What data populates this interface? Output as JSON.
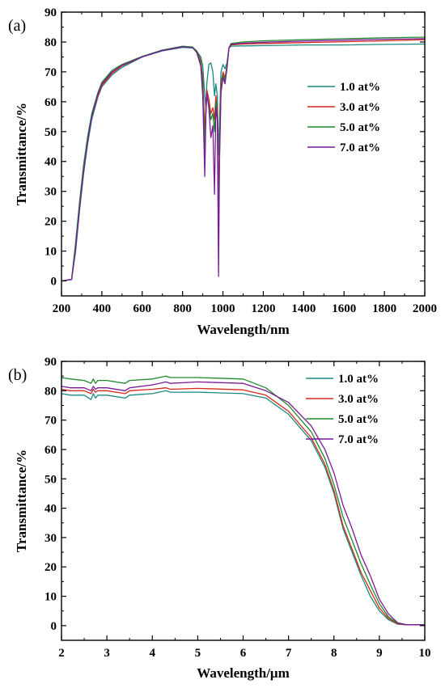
{
  "chart_data": [
    {
      "type": "line",
      "panel_label": "(a)",
      "xlabel": "Wavelength/nm",
      "ylabel": "Transmittance/%",
      "xlim": [
        200,
        2000
      ],
      "ylim": [
        -5,
        90
      ],
      "xticks": [
        200,
        400,
        600,
        800,
        1000,
        1200,
        1400,
        1600,
        1800,
        2000
      ],
      "yticks": [
        0,
        10,
        20,
        30,
        40,
        50,
        60,
        70,
        80,
        90
      ],
      "legend_position": "right-middle",
      "series": [
        {
          "name": "1.0 at%",
          "color": "#1a8a80",
          "x": [
            200,
            250,
            270,
            290,
            310,
            330,
            350,
            380,
            400,
            450,
            500,
            600,
            700,
            800,
            850,
            870,
            890,
            900,
            910,
            915,
            920,
            930,
            940,
            950,
            958,
            965,
            972,
            978,
            983,
            990,
            1000,
            1010,
            1020,
            1030,
            1040,
            1100,
            1200,
            1400,
            1600,
            1800,
            2000
          ],
          "y": [
            0,
            0.5,
            10,
            24,
            36,
            46,
            54,
            61.5,
            65,
            69,
            71.5,
            75,
            77,
            78.2,
            78,
            77,
            75,
            72,
            62,
            58,
            66,
            72.5,
            73,
            70,
            62,
            66,
            62,
            42,
            53,
            70,
            72.5,
            71,
            73,
            78,
            78.6,
            78.7,
            78.8,
            79,
            79,
            79.2,
            79.3
          ]
        },
        {
          "name": "3.0 at%",
          "color": "#d42a1e",
          "x": [
            200,
            250,
            270,
            290,
            310,
            330,
            350,
            380,
            400,
            450,
            500,
            600,
            700,
            800,
            850,
            870,
            890,
            900,
            910,
            915,
            920,
            930,
            940,
            950,
            958,
            965,
            972,
            978,
            983,
            990,
            1000,
            1010,
            1020,
            1030,
            1040,
            1100,
            1200,
            1400,
            1600,
            1800,
            2000
          ],
          "y": [
            0,
            0.5,
            12,
            26,
            38,
            47.5,
            55,
            62,
            65.5,
            69.5,
            72,
            75,
            77.2,
            78.4,
            78.2,
            77,
            74,
            68,
            50,
            58,
            64,
            61,
            56,
            58,
            54,
            62,
            57,
            28,
            46,
            66,
            70,
            68,
            72,
            78,
            79,
            79.3,
            79.5,
            79.8,
            80.1,
            80.4,
            80.8
          ]
        },
        {
          "name": "5.0 at%",
          "color": "#1f8a2b",
          "x": [
            200,
            250,
            270,
            290,
            310,
            330,
            350,
            380,
            400,
            450,
            500,
            600,
            700,
            800,
            850,
            870,
            890,
            900,
            910,
            915,
            920,
            930,
            940,
            950,
            958,
            965,
            972,
            978,
            983,
            990,
            1000,
            1010,
            1020,
            1030,
            1040,
            1100,
            1200,
            1400,
            1600,
            1800,
            2000
          ],
          "y": [
            0,
            0.5,
            13,
            27,
            39,
            48.5,
            56,
            63,
            66.5,
            70.5,
            72.5,
            75.2,
            77.3,
            78.6,
            78.3,
            77,
            73,
            66,
            44,
            56,
            62,
            59,
            54,
            56,
            50,
            60,
            55,
            18,
            42,
            64,
            69,
            67,
            72,
            78,
            79.5,
            80,
            80.4,
            80.8,
            81.1,
            81.4,
            81.6
          ]
        },
        {
          "name": "7.0 at%",
          "color": "#7a1a99",
          "x": [
            200,
            250,
            270,
            290,
            310,
            330,
            350,
            380,
            400,
            450,
            500,
            600,
            700,
            800,
            850,
            870,
            890,
            900,
            910,
            915,
            920,
            930,
            940,
            950,
            958,
            965,
            972,
            978,
            983,
            990,
            1000,
            1010,
            1020,
            1030,
            1040,
            1100,
            1200,
            1400,
            1600,
            1800,
            2000
          ],
          "y": [
            0,
            0.5,
            11,
            25,
            37,
            47,
            55,
            62.5,
            66,
            70,
            72.2,
            75,
            77.2,
            78.4,
            78.1,
            76.5,
            72,
            62,
            35,
            55,
            63,
            58,
            48,
            52,
            29,
            58,
            54,
            1.5,
            40,
            63,
            68,
            66,
            71,
            78,
            79.2,
            79.6,
            79.9,
            80.3,
            80.6,
            80.9,
            81.1
          ]
        }
      ]
    },
    {
      "type": "line",
      "panel_label": "(b)",
      "xlabel": "Wavelength/μm",
      "ylabel": "Transmittance/%",
      "xlim": [
        2,
        10
      ],
      "ylim": [
        -5,
        90
      ],
      "xticks": [
        2,
        3,
        4,
        5,
        6,
        7,
        8,
        9,
        10
      ],
      "yticks": [
        0,
        10,
        20,
        30,
        40,
        50,
        60,
        70,
        80,
        90
      ],
      "legend_position": "top-right",
      "series": [
        {
          "name": "1.0 at%",
          "color": "#1a8a80",
          "x": [
            2,
            2.2,
            2.5,
            2.65,
            2.7,
            2.75,
            2.8,
            3,
            3.4,
            3.5,
            4,
            4.3,
            4.4,
            5,
            6,
            6.5,
            7,
            7.5,
            7.8,
            8,
            8.2,
            8.4,
            8.6,
            8.8,
            9,
            9.2,
            9.4,
            9.6,
            10
          ],
          "y": [
            79,
            78.5,
            78.5,
            77,
            79,
            77.5,
            78.5,
            78.5,
            77.5,
            78.5,
            79,
            80,
            79.5,
            79.5,
            79,
            77.5,
            72,
            63,
            54,
            45,
            33,
            25,
            17,
            10,
            5,
            2,
            0.5,
            0.3,
            0.3
          ]
        },
        {
          "name": "3.0 at%",
          "color": "#d42a1e",
          "x": [
            2,
            2.2,
            2.5,
            2.65,
            2.7,
            2.75,
            2.8,
            3,
            3.4,
            3.5,
            4,
            4.3,
            4.4,
            5,
            6,
            6.5,
            7,
            7.5,
            7.8,
            8,
            8.2,
            8.4,
            8.6,
            8.8,
            9,
            9.2,
            9.4,
            9.6,
            10
          ],
          "y": [
            80.5,
            80,
            80,
            79,
            80.5,
            79.5,
            80,
            80,
            79,
            80,
            80.5,
            81,
            80.5,
            80.8,
            80.3,
            78.5,
            73,
            64,
            55,
            46,
            34,
            26,
            18,
            12,
            6,
            2.5,
            0.6,
            0.3,
            0.3
          ]
        },
        {
          "name": "5.0 at%",
          "color": "#1f8a2b",
          "x": [
            2,
            2.2,
            2.5,
            2.65,
            2.7,
            2.75,
            2.8,
            3,
            3.4,
            3.5,
            4,
            4.3,
            4.4,
            5,
            6,
            6.5,
            7,
            7.5,
            7.8,
            8,
            8.2,
            8.4,
            8.6,
            8.8,
            9,
            9.2,
            9.4,
            9.6,
            10
          ],
          "y": [
            84.5,
            84,
            83.5,
            82.5,
            84,
            82.5,
            83.5,
            83.5,
            82.5,
            83.5,
            84,
            85,
            84.5,
            84.5,
            84,
            81,
            75,
            66,
            57,
            48,
            37,
            29,
            21,
            14,
            7.5,
            3,
            0.8,
            0.3,
            0.3
          ]
        },
        {
          "name": "7.0 at%",
          "color": "#7a1a99",
          "x": [
            2,
            2.2,
            2.5,
            2.65,
            2.7,
            2.75,
            2.8,
            3,
            3.4,
            3.5,
            4,
            4.3,
            4.4,
            5,
            6,
            6.5,
            7,
            7.5,
            7.8,
            8,
            8.2,
            8.4,
            8.6,
            8.8,
            9,
            9.2,
            9.4,
            9.6,
            10
          ],
          "y": [
            81.5,
            81,
            81,
            80,
            81.5,
            80.5,
            81,
            81,
            80,
            81,
            82,
            83,
            82.5,
            83,
            82.5,
            80,
            76,
            68,
            60,
            52,
            41,
            33,
            24,
            17,
            9,
            4,
            1,
            0.3,
            0.3
          ]
        }
      ]
    }
  ]
}
